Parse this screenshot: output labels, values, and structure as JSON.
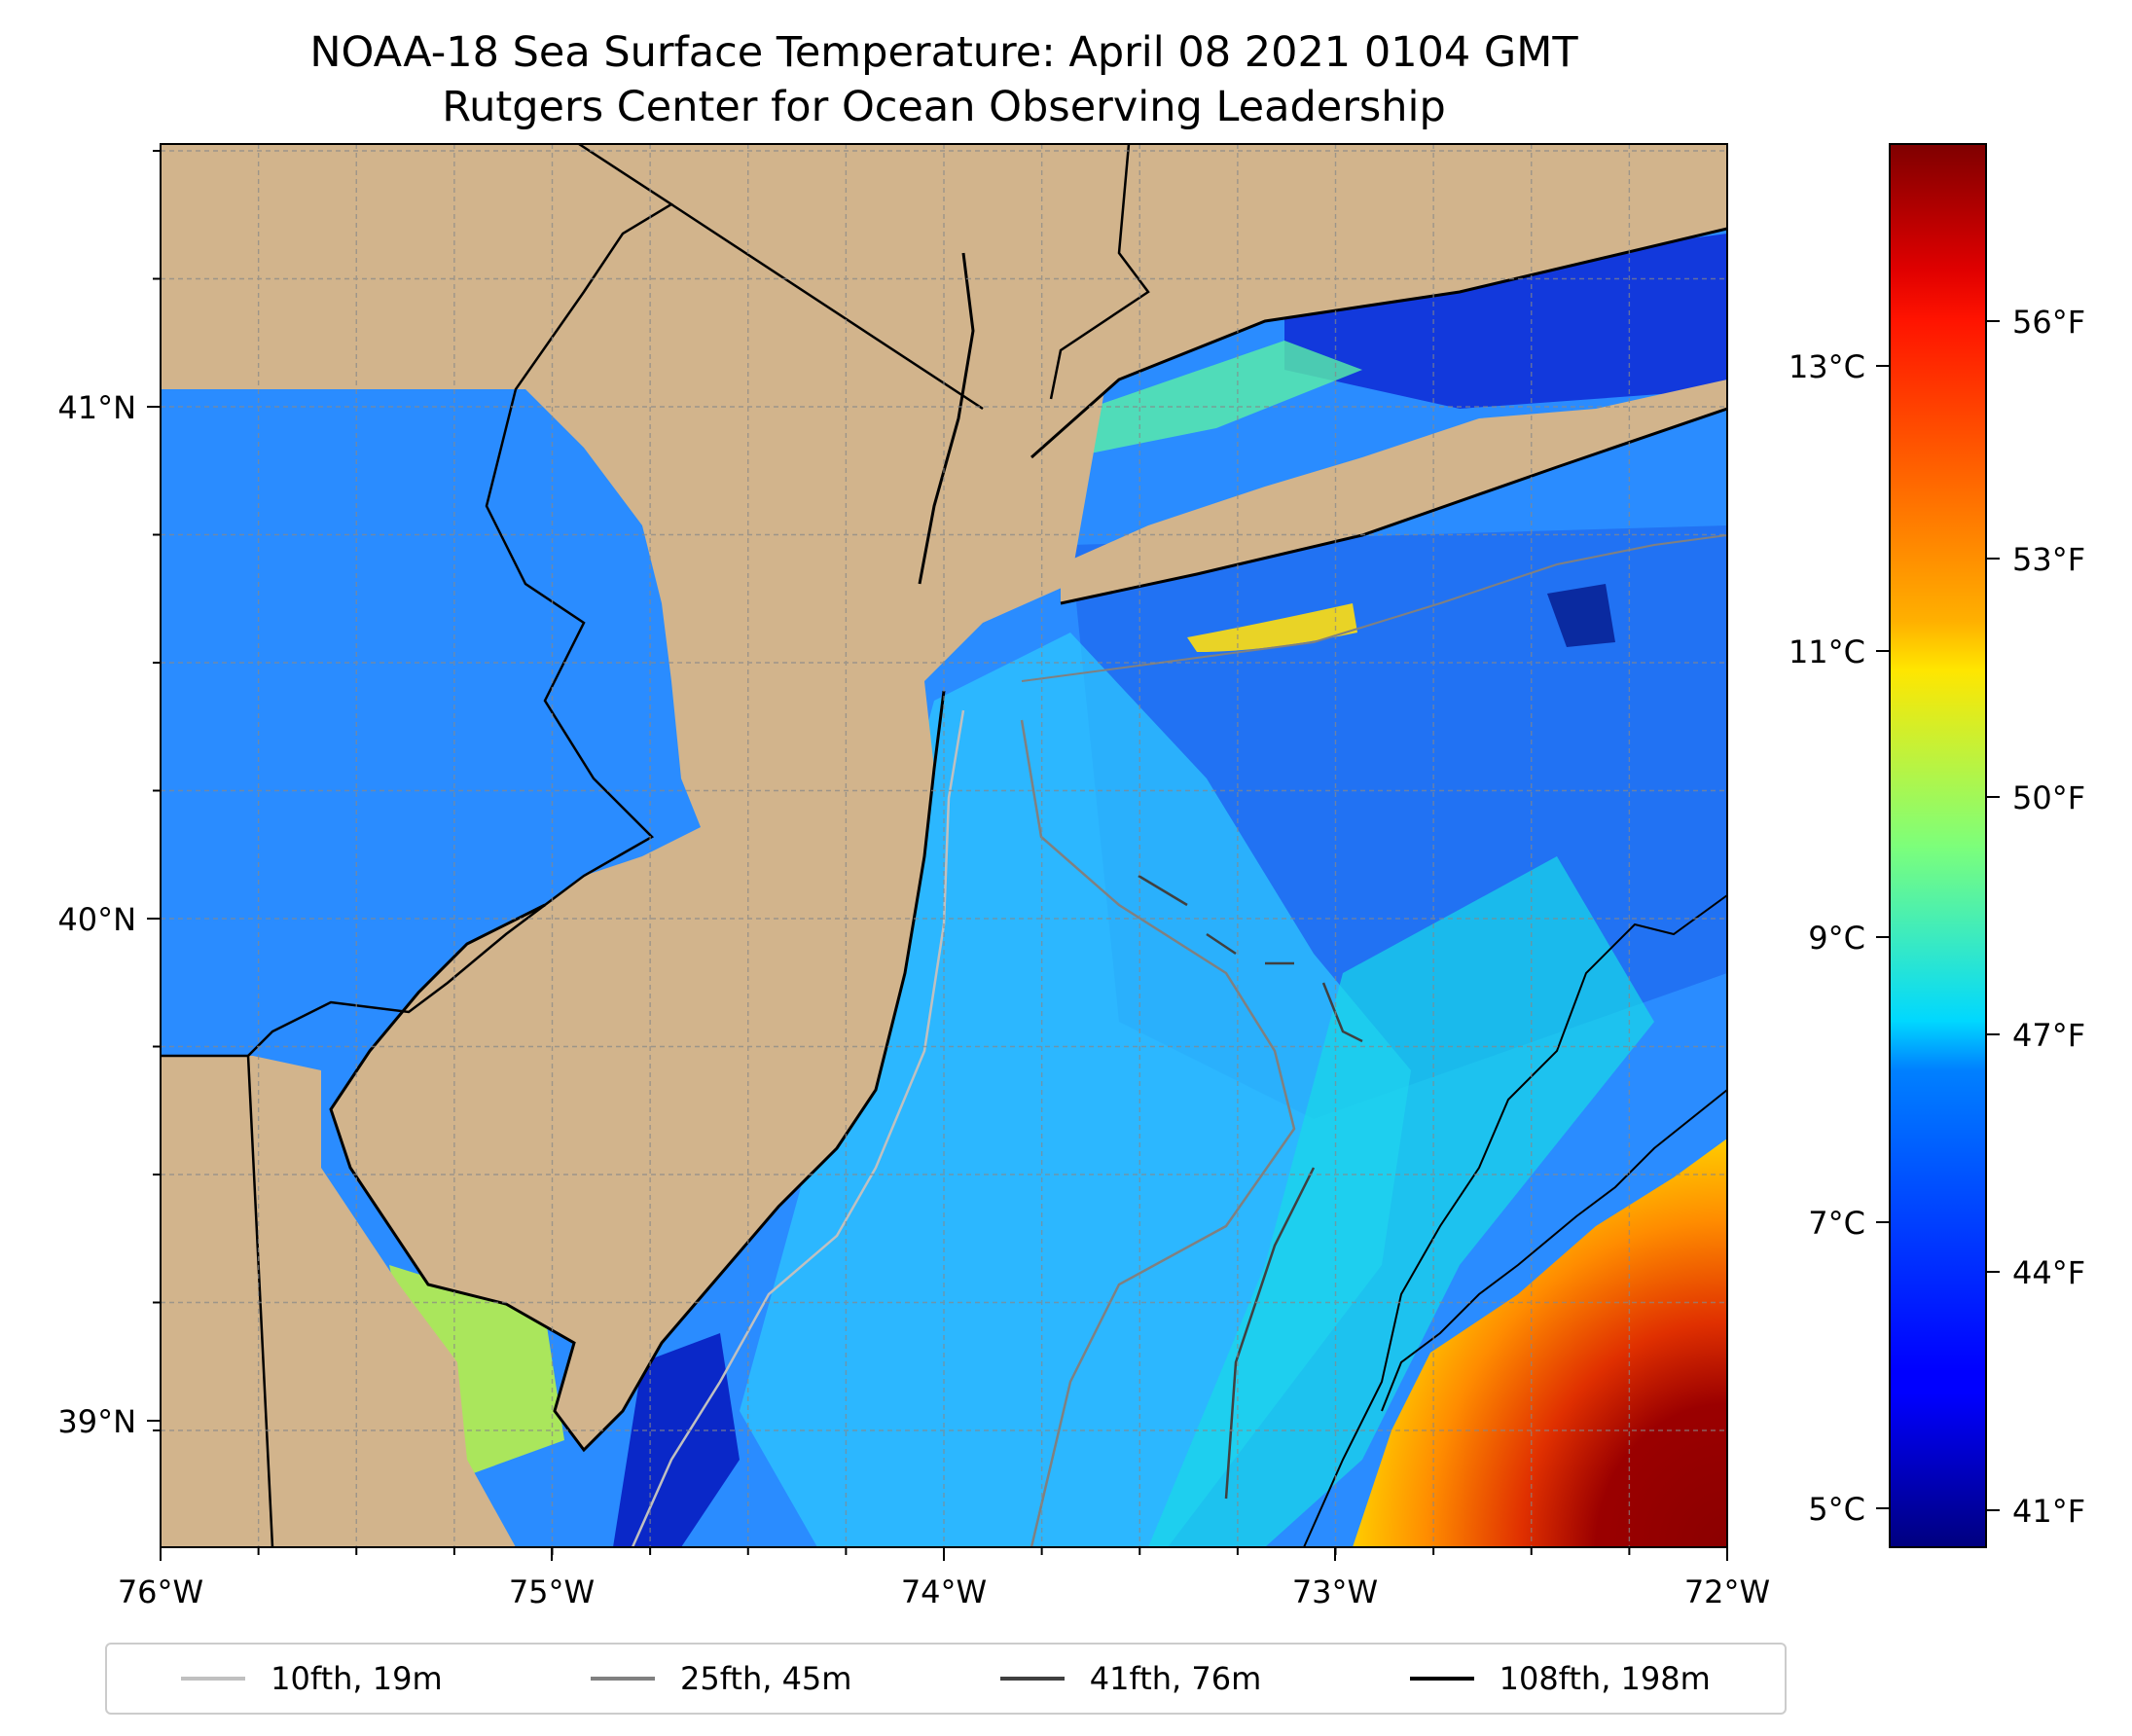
{
  "title": {
    "line1": "NOAA-18 Sea Surface Temperature: April 08 2021 0104 GMT",
    "line2": "Rutgers Center for Ocean Observing Leadership"
  },
  "map": {
    "longitude_range": [
      -76,
      -72
    ],
    "latitude_range": [
      38.75,
      41.52
    ],
    "x_ticks": [
      "76°W",
      "75°W",
      "74°W",
      "73°W",
      "72°W"
    ],
    "y_ticks": [
      "41°N",
      "40°N",
      "39°N"
    ],
    "land_color": "#d2b48c",
    "gridlines": true
  },
  "colorbar": {
    "colormap": "jet",
    "celsius_ticks": [
      "13°C",
      "11°C",
      "9°C",
      "7°C",
      "5°C"
    ],
    "fahrenheit_ticks": [
      "56°F",
      "53°F",
      "50°F",
      "47°F",
      "44°F",
      "41°F"
    ],
    "celsius_range": [
      4.8,
      14.6
    ]
  },
  "legend": {
    "items": [
      {
        "label": "10fth, 19m",
        "color": "#c0c0c0"
      },
      {
        "label": "25fth, 45m",
        "color": "#808080"
      },
      {
        "label": "41fth, 76m",
        "color": "#404040"
      },
      {
        "label": "108fth, 198m",
        "color": "#000000"
      }
    ]
  }
}
